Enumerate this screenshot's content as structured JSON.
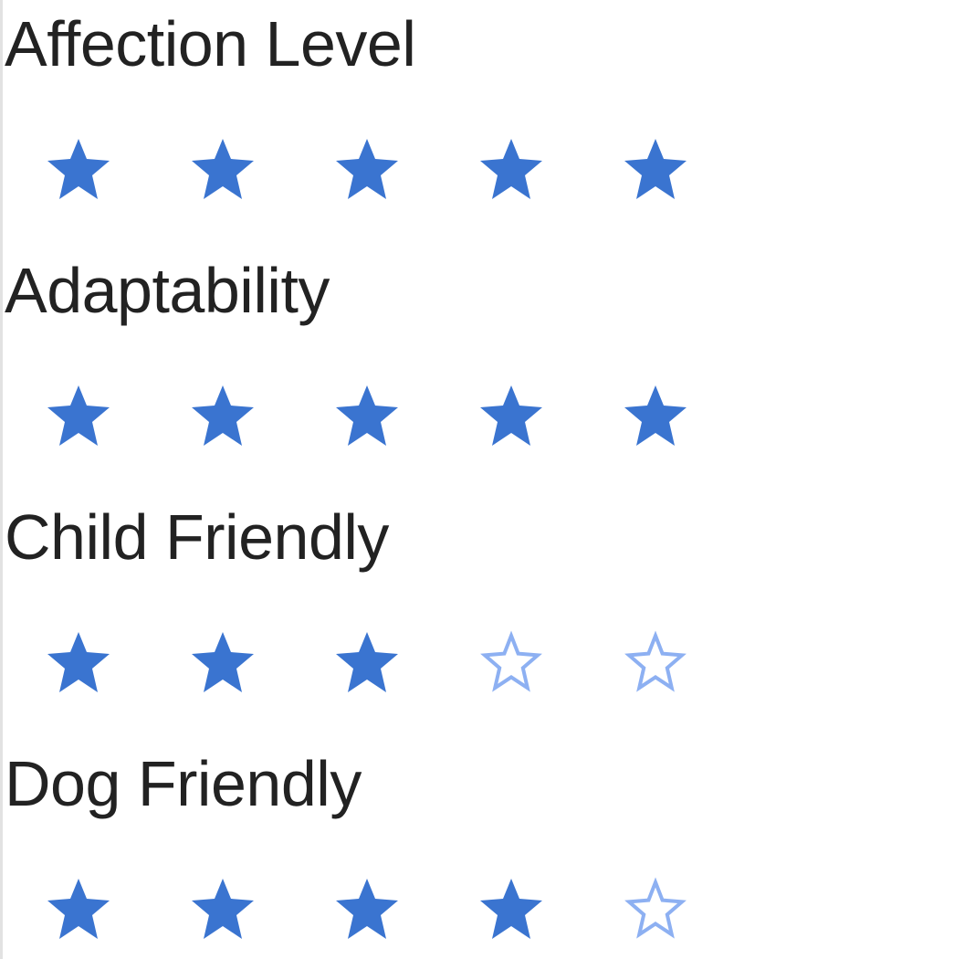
{
  "colors": {
    "star_filled": "#3a74d0",
    "star_empty_stroke": "#8db0f2",
    "text": "#222222"
  },
  "rating_max": 5,
  "ratings": [
    {
      "label": "Affection Level",
      "value": 5
    },
    {
      "label": "Adaptability",
      "value": 5
    },
    {
      "label": "Child Friendly",
      "value": 3
    },
    {
      "label": "Dog Friendly",
      "value": 4
    }
  ],
  "icons": {
    "filled": "star-filled-icon",
    "empty": "star-outline-icon"
  }
}
